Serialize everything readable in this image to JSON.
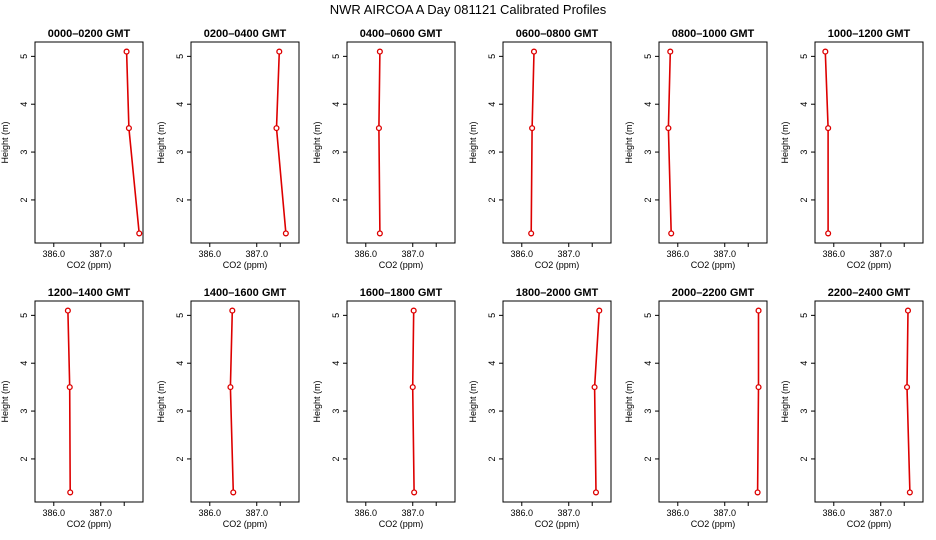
{
  "title": "NWR AIRCOA A  Day 081121  Calibrated Profiles",
  "colors": {
    "series": "#dd0000",
    "frame": "#000000"
  },
  "chart_data": [
    {
      "type": "line",
      "title": "0000–0200 GMT",
      "xlabel": "CO2 (ppm)",
      "ylabel": "Height (m)",
      "xlim": [
        385.6,
        387.9
      ],
      "ylim": [
        1.1,
        5.3
      ],
      "xticks": [
        386.0,
        387.0
      ],
      "xtick_labels": [
        "386.0",
        "387.0"
      ],
      "yticks": [
        2,
        3,
        4,
        5
      ],
      "ytick_labels": [
        "2",
        "3",
        "4",
        "5"
      ],
      "series": [
        {
          "x": [
            387.55,
            387.6,
            387.82
          ],
          "y": [
            5.1,
            3.5,
            1.3
          ]
        }
      ]
    },
    {
      "type": "line",
      "title": "0200–0400 GMT",
      "xlabel": "CO2 (ppm)",
      "ylabel": "Height (m)",
      "xlim": [
        385.6,
        387.9
      ],
      "ylim": [
        1.1,
        5.3
      ],
      "xticks": [
        386.0,
        387.0
      ],
      "xtick_labels": [
        "386.0",
        "387.0"
      ],
      "yticks": [
        2,
        3,
        4,
        5
      ],
      "ytick_labels": [
        "2",
        "3",
        "4",
        "5"
      ],
      "series": [
        {
          "x": [
            387.48,
            387.42,
            387.62
          ],
          "y": [
            5.1,
            3.5,
            1.3
          ]
        }
      ]
    },
    {
      "type": "line",
      "title": "0400–0600 GMT",
      "xlabel": "CO2 (ppm)",
      "ylabel": "Height (m)",
      "xlim": [
        385.6,
        387.9
      ],
      "ylim": [
        1.1,
        5.3
      ],
      "xticks": [
        386.0,
        387.0
      ],
      "xtick_labels": [
        "386.0",
        "387.0"
      ],
      "yticks": [
        2,
        3,
        4,
        5
      ],
      "ytick_labels": [
        "2",
        "3",
        "4",
        "5"
      ],
      "series": [
        {
          "x": [
            386.3,
            386.28,
            386.3
          ],
          "y": [
            5.1,
            3.5,
            1.3
          ]
        }
      ]
    },
    {
      "type": "line",
      "title": "0600–0800 GMT",
      "xlabel": "CO2 (ppm)",
      "ylabel": "Height (m)",
      "xlim": [
        385.6,
        387.9
      ],
      "ylim": [
        1.1,
        5.3
      ],
      "xticks": [
        386.0,
        387.0
      ],
      "xtick_labels": [
        "386.0",
        "387.0"
      ],
      "yticks": [
        2,
        3,
        4,
        5
      ],
      "ytick_labels": [
        "2",
        "3",
        "4",
        "5"
      ],
      "series": [
        {
          "x": [
            386.26,
            386.22,
            386.2
          ],
          "y": [
            5.1,
            3.5,
            1.3
          ]
        }
      ]
    },
    {
      "type": "line",
      "title": "0800–1000 GMT",
      "xlabel": "CO2 (ppm)",
      "ylabel": "Height (m)",
      "xlim": [
        385.6,
        387.9
      ],
      "ylim": [
        1.1,
        5.3
      ],
      "xticks": [
        386.0,
        387.0
      ],
      "xtick_labels": [
        "386.0",
        "387.0"
      ],
      "yticks": [
        2,
        3,
        4,
        5
      ],
      "ytick_labels": [
        "2",
        "3",
        "4",
        "5"
      ],
      "series": [
        {
          "x": [
            385.84,
            385.8,
            385.86
          ],
          "y": [
            5.1,
            3.5,
            1.3
          ]
        }
      ]
    },
    {
      "type": "line",
      "title": "1000–1200 GMT",
      "xlabel": "CO2 (ppm)",
      "ylabel": "Height (m)",
      "xlim": [
        385.6,
        387.9
      ],
      "ylim": [
        1.1,
        5.3
      ],
      "xticks": [
        386.0,
        387.0
      ],
      "xtick_labels": [
        "386.0",
        "387.0"
      ],
      "yticks": [
        2,
        3,
        4,
        5
      ],
      "ytick_labels": [
        "2",
        "3",
        "4",
        "5"
      ],
      "series": [
        {
          "x": [
            385.82,
            385.88,
            385.88
          ],
          "y": [
            5.1,
            3.5,
            1.3
          ]
        }
      ]
    },
    {
      "type": "line",
      "title": "1200–1400 GMT",
      "xlabel": "CO2 (ppm)",
      "ylabel": "Height (m)",
      "xlim": [
        385.6,
        387.9
      ],
      "ylim": [
        1.1,
        5.3
      ],
      "xticks": [
        386.0,
        387.0
      ],
      "xtick_labels": [
        "386.0",
        "387.0"
      ],
      "yticks": [
        2,
        3,
        4,
        5
      ],
      "ytick_labels": [
        "2",
        "3",
        "4",
        "5"
      ],
      "series": [
        {
          "x": [
            386.3,
            386.34,
            386.35
          ],
          "y": [
            5.1,
            3.5,
            1.3
          ]
        }
      ]
    },
    {
      "type": "line",
      "title": "1400–1600 GMT",
      "xlabel": "CO2 (ppm)",
      "ylabel": "Height (m)",
      "xlim": [
        385.6,
        387.9
      ],
      "ylim": [
        1.1,
        5.3
      ],
      "xticks": [
        386.0,
        387.0
      ],
      "xtick_labels": [
        "386.0",
        "387.0"
      ],
      "yticks": [
        2,
        3,
        4,
        5
      ],
      "ytick_labels": [
        "2",
        "3",
        "4",
        "5"
      ],
      "series": [
        {
          "x": [
            386.48,
            386.44,
            386.5
          ],
          "y": [
            5.1,
            3.5,
            1.3
          ]
        }
      ]
    },
    {
      "type": "line",
      "title": "1600–1800 GMT",
      "xlabel": "CO2 (ppm)",
      "ylabel": "Height (m)",
      "xlim": [
        385.6,
        387.9
      ],
      "ylim": [
        1.1,
        5.3
      ],
      "xticks": [
        386.0,
        387.0
      ],
      "xtick_labels": [
        "386.0",
        "387.0"
      ],
      "yticks": [
        2,
        3,
        4,
        5
      ],
      "ytick_labels": [
        "2",
        "3",
        "4",
        "5"
      ],
      "series": [
        {
          "x": [
            387.02,
            387.0,
            387.03
          ],
          "y": [
            5.1,
            3.5,
            1.3
          ]
        }
      ]
    },
    {
      "type": "line",
      "title": "1800–2000 GMT",
      "xlabel": "CO2 (ppm)",
      "ylabel": "Height (m)",
      "xlim": [
        385.6,
        387.9
      ],
      "ylim": [
        1.1,
        5.3
      ],
      "xticks": [
        386.0,
        387.0
      ],
      "xtick_labels": [
        "386.0",
        "387.0"
      ],
      "yticks": [
        2,
        3,
        4,
        5
      ],
      "ytick_labels": [
        "2",
        "3",
        "4",
        "5"
      ],
      "series": [
        {
          "x": [
            387.65,
            387.55,
            387.58
          ],
          "y": [
            5.1,
            3.5,
            1.3
          ]
        }
      ]
    },
    {
      "type": "line",
      "title": "2000–2200 GMT",
      "xlabel": "CO2 (ppm)",
      "ylabel": "Height (m)",
      "xlim": [
        385.6,
        387.9
      ],
      "ylim": [
        1.1,
        5.3
      ],
      "xticks": [
        386.0,
        387.0
      ],
      "xtick_labels": [
        "386.0",
        "387.0"
      ],
      "yticks": [
        2,
        3,
        4,
        5
      ],
      "ytick_labels": [
        "2",
        "3",
        "4",
        "5"
      ],
      "series": [
        {
          "x": [
            387.72,
            387.72,
            387.7
          ],
          "y": [
            5.1,
            3.5,
            1.3
          ]
        }
      ]
    },
    {
      "type": "line",
      "title": "2200–2400 GMT",
      "xlabel": "CO2 (ppm)",
      "ylabel": "Height (m)",
      "xlim": [
        385.6,
        387.9
      ],
      "ylim": [
        1.1,
        5.3
      ],
      "xticks": [
        386.0,
        387.0
      ],
      "xtick_labels": [
        "386.0",
        "387.0"
      ],
      "yticks": [
        2,
        3,
        4,
        5
      ],
      "ytick_labels": [
        "2",
        "3",
        "4",
        "5"
      ],
      "series": [
        {
          "x": [
            387.58,
            387.56,
            387.62
          ],
          "y": [
            5.1,
            3.5,
            1.3
          ]
        }
      ]
    }
  ]
}
